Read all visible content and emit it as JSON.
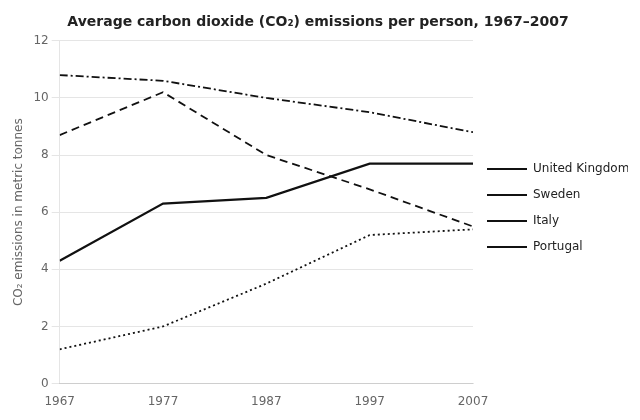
{
  "chart_data": {
    "type": "line",
    "title": "Average carbon dioxide (CO₂) emissions per person, 1967–2007",
    "ylabel": "CO₂ emissions in metric tonnes",
    "x": [
      1967,
      1977,
      1987,
      1997,
      2007
    ],
    "series": [
      {
        "name": "United Kingdom",
        "color": "#111111",
        "line_style": "dashdot",
        "values": [
          10.8,
          10.6,
          10.0,
          9.5,
          8.8
        ]
      },
      {
        "name": "Sweden",
        "color": "#111111",
        "line_style": "dashed",
        "values": [
          8.7,
          10.2,
          8.0,
          6.8,
          5.5
        ]
      },
      {
        "name": "Italy",
        "color": "#111111",
        "line_style": "solid",
        "values": [
          4.3,
          6.3,
          6.5,
          7.7,
          7.7
        ]
      },
      {
        "name": "Portugal",
        "color": "#111111",
        "line_style": "dotted",
        "values": [
          1.2,
          2.0,
          3.5,
          5.2,
          5.4
        ]
      }
    ],
    "xlim": [
      1967,
      2007
    ],
    "xticks": [
      1967,
      1977,
      1987,
      1997,
      2007
    ],
    "ylim": [
      0,
      12
    ],
    "yticks": [
      0,
      2,
      4,
      6,
      8,
      10,
      12
    ],
    "grid": "y",
    "legend": "right"
  }
}
